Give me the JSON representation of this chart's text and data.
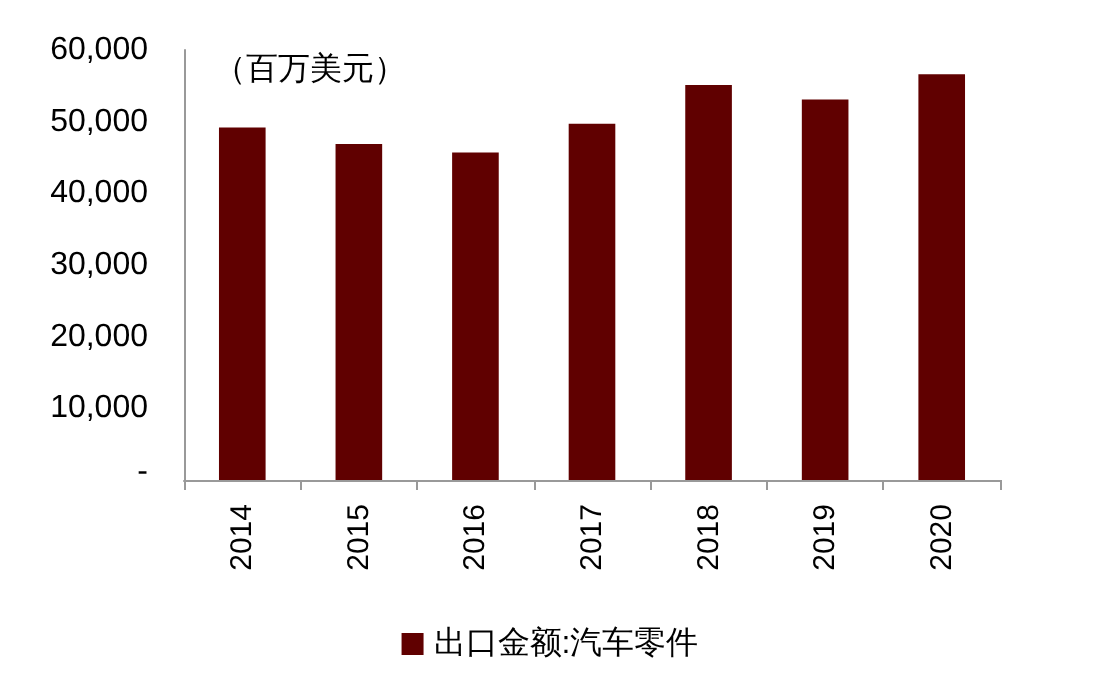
{
  "chart_data": {
    "type": "bar",
    "ylabel": "（百万美元）",
    "categories": [
      "2014",
      "2015",
      "2016",
      "2017",
      "2018",
      "2019",
      "2020"
    ],
    "series": [
      {
        "name": "出口金额:汽车零件",
        "color": "#600000",
        "values": [
          49200,
          46900,
          45700,
          49700,
          55100,
          53100,
          56600
        ]
      }
    ],
    "ylim": [
      0,
      60000
    ],
    "yticks": [
      {
        "value": 0,
        "label": "-"
      },
      {
        "value": 10000,
        "label": "10,000"
      },
      {
        "value": 20000,
        "label": "20,000"
      },
      {
        "value": 30000,
        "label": "30,000"
      },
      {
        "value": 40000,
        "label": "40,000"
      },
      {
        "value": 50000,
        "label": "50,000"
      },
      {
        "value": 60000,
        "label": "60,000"
      }
    ],
    "grid": false,
    "legend": "bottom"
  }
}
